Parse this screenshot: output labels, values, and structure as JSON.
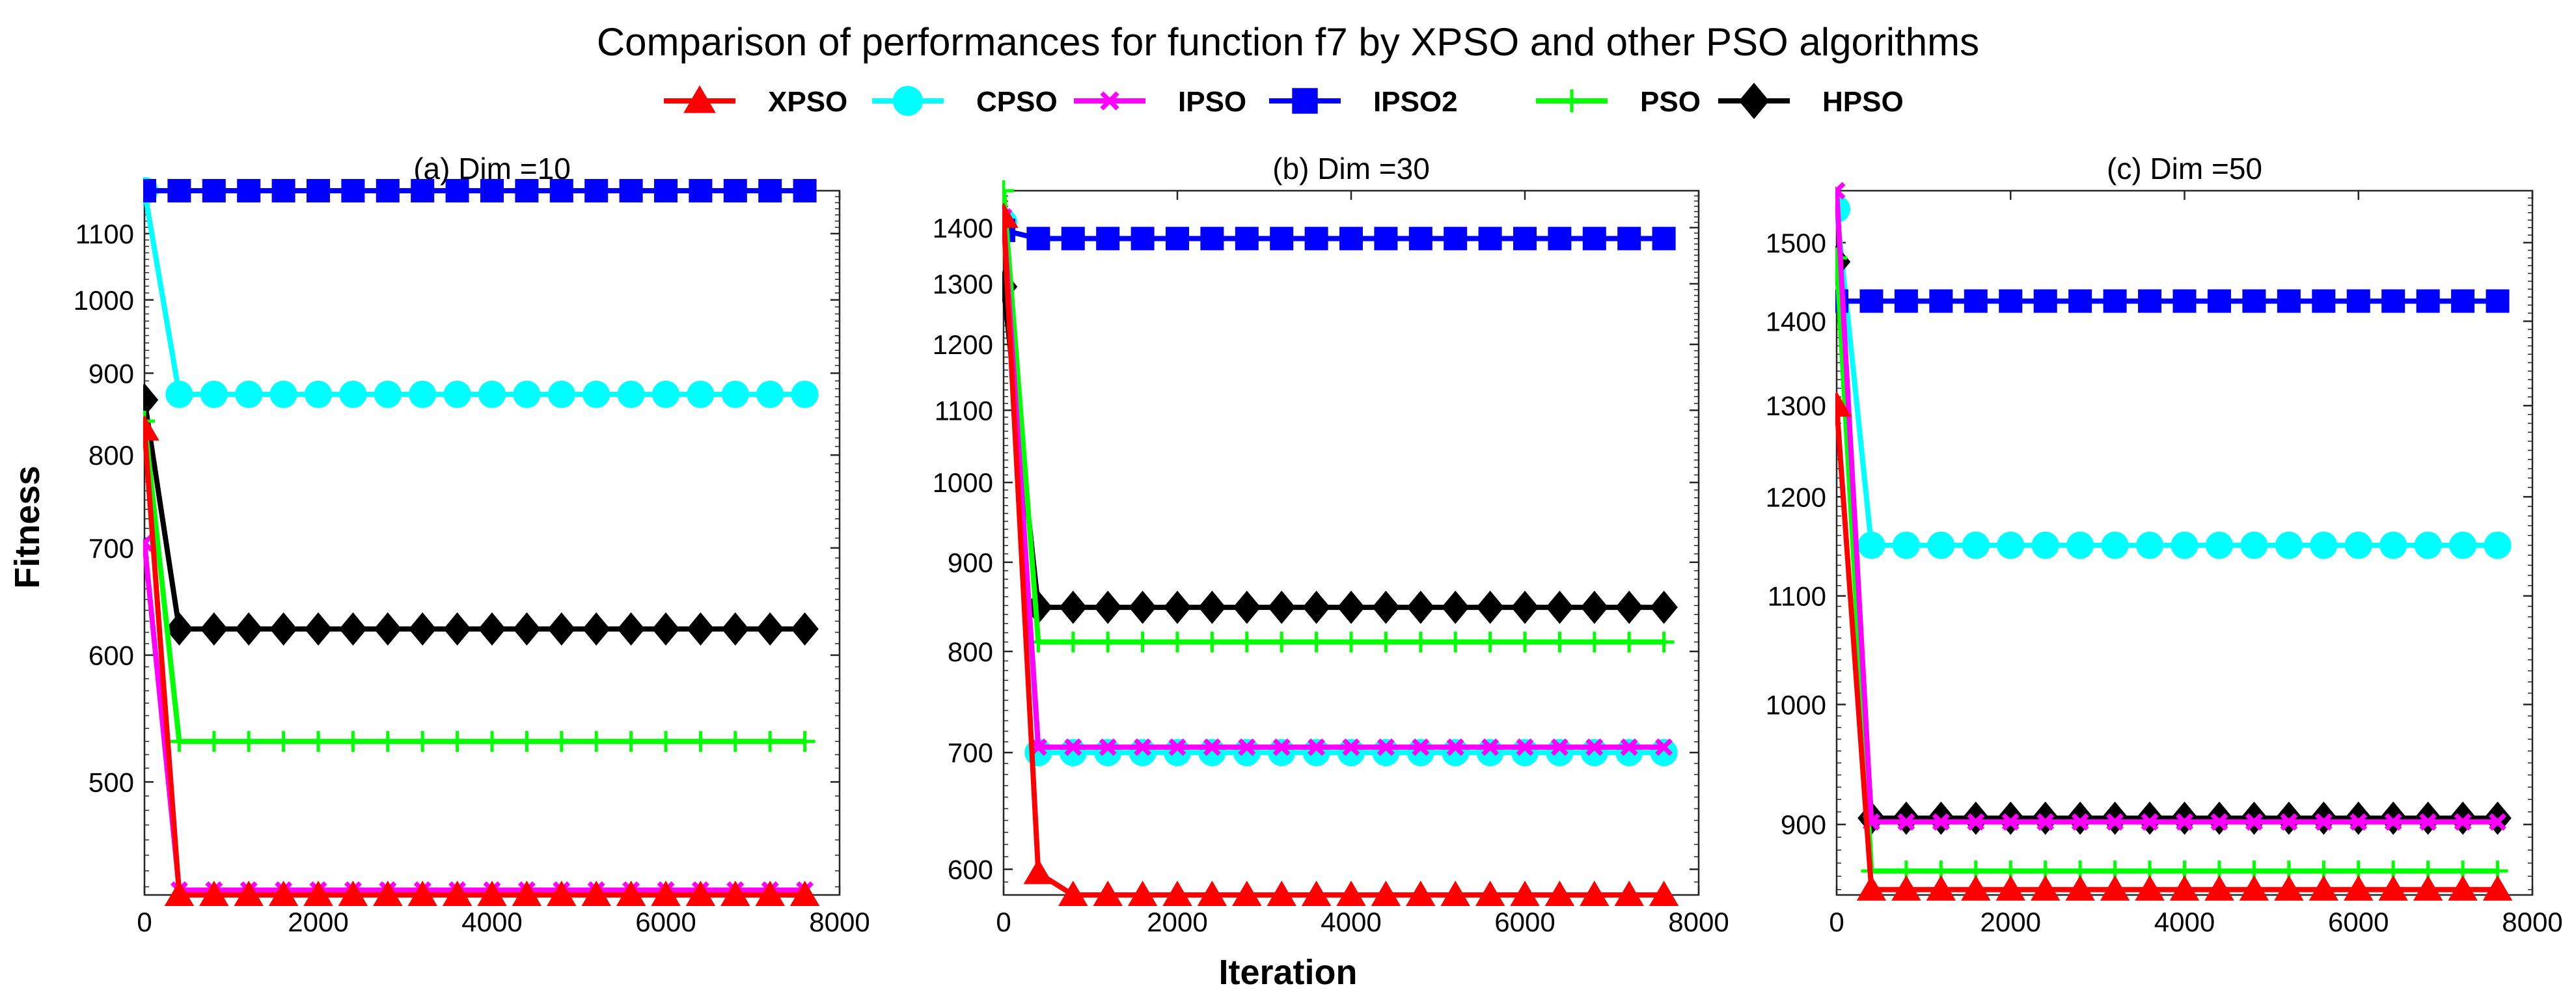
{
  "title": "Comparison of performances for function f7 by XPSO and other PSO algorithms",
  "legend": [
    {
      "name": "XPSO",
      "color": "#ff0000",
      "marker": "triangle-up"
    },
    {
      "name": "CPSO",
      "color": "#00ffff",
      "marker": "circle"
    },
    {
      "name": "IPSO",
      "color": "#ff00ff",
      "marker": "x-mark"
    },
    {
      "name": "IPSO2",
      "color": "#0000ff",
      "marker": "square"
    },
    {
      "name": "PSO",
      "color": "#00ff00",
      "marker": "plus"
    },
    {
      "name": "HPSO",
      "color": "#000000",
      "marker": "diamond"
    }
  ],
  "ylabel": "Fitness",
  "xlabel": "Iteration",
  "chart_data": [
    {
      "type": "line",
      "title": "(a) Dim =10",
      "yscale": "log",
      "xlim": [
        0,
        8000
      ],
      "ylim": [
        425,
        1170
      ],
      "xticks": [
        0,
        2000,
        4000,
        6000,
        8000
      ],
      "yticks": [
        500,
        600,
        700,
        800,
        900,
        1000,
        1100
      ],
      "x_start": 0,
      "x_step": 400,
      "x_end": 7600,
      "series": [
        {
          "name": "XPSO",
          "start": 830,
          "plateau": 425
        },
        {
          "name": "CPSO",
          "start": 1170,
          "plateau": 873
        },
        {
          "name": "IPSO",
          "start": 705,
          "plateau": 428
        },
        {
          "name": "IPSO2",
          "start": 1170,
          "plateau": 1170
        },
        {
          "name": "PSO",
          "start": 840,
          "plateau": 530
        },
        {
          "name": "HPSO",
          "start": 866,
          "plateau": 623
        }
      ]
    },
    {
      "type": "line",
      "title": "(b) Dim =30",
      "yscale": "log",
      "xlim": [
        0,
        8000
      ],
      "ylim": [
        580,
        1470
      ],
      "xticks": [
        0,
        2000,
        4000,
        6000,
        8000
      ],
      "yticks": [
        600,
        700,
        800,
        900,
        1000,
        1100,
        1200,
        1300,
        1400
      ],
      "x_start": 0,
      "x_step": 400,
      "x_end": 7600,
      "series": [
        {
          "name": "XPSO",
          "start": 1420,
          "second": 597,
          "plateau": 580
        },
        {
          "name": "CPSO",
          "start": 1410,
          "plateau": 700
        },
        {
          "name": "IPSO",
          "start": 1420,
          "plateau": 705
        },
        {
          "name": "IPSO2",
          "start": 1395,
          "plateau": 1380
        },
        {
          "name": "PSO",
          "start": 1470,
          "plateau": 810
        },
        {
          "name": "HPSO",
          "start": 1295,
          "plateau": 848
        }
      ]
    },
    {
      "type": "line",
      "title": "(c) Dim =50",
      "yscale": "log",
      "xlim": [
        0,
        8000
      ],
      "ylim": [
        846,
        1570
      ],
      "xticks": [
        0,
        2000,
        4000,
        6000,
        8000
      ],
      "yticks": [
        900,
        1000,
        1100,
        1200,
        1300,
        1400,
        1500
      ],
      "x_start": 0,
      "x_step": 400,
      "x_end": 7600,
      "series": [
        {
          "name": "XPSO",
          "start": 1300,
          "plateau": 850
        },
        {
          "name": "CPSO",
          "start": 1545,
          "plateau": 1150
        },
        {
          "name": "IPSO",
          "start": 1570,
          "plateau": 902
        },
        {
          "name": "IPSO2",
          "start": 1425,
          "plateau": 1425
        },
        {
          "name": "PSO",
          "start": 1480,
          "plateau": 864
        },
        {
          "name": "HPSO",
          "start": 1475,
          "plateau": 905
        }
      ]
    }
  ]
}
